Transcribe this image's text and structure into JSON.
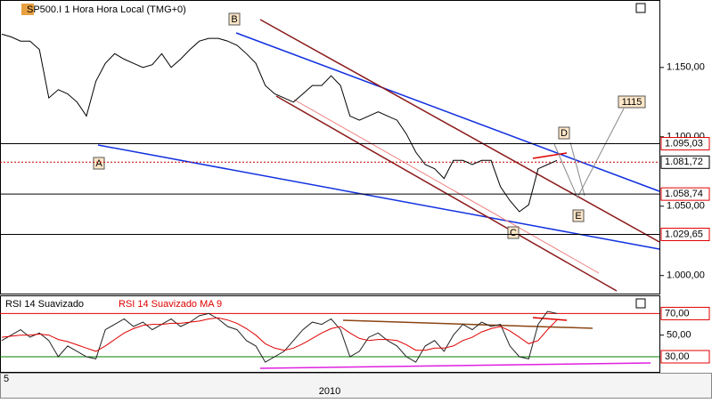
{
  "chart_data": [
    {
      "type": "line",
      "title": "SP500.I 1 Hora Hora Local (TMG+0)",
      "values": [
        1174,
        1172,
        1169,
        1169,
        1163,
        1128,
        1134,
        1131,
        1125,
        1115,
        1140,
        1153,
        1160,
        1156,
        1153,
        1150,
        1152,
        1160,
        1150,
        1156,
        1163,
        1169,
        1171,
        1171,
        1169,
        1166,
        1160,
        1153,
        1137,
        1131,
        1128,
        1125,
        1131,
        1137,
        1137,
        1144,
        1137,
        1115,
        1112,
        1115,
        1118,
        1115,
        1112,
        1102,
        1089,
        1080,
        1077,
        1070,
        1083,
        1083,
        1080,
        1083,
        1083,
        1064,
        1054,
        1046,
        1051,
        1077,
        1080,
        1083
      ],
      "color": "#000000",
      "ylim": [
        987,
        1198
      ],
      "yticks": [
        {
          "value": 1000,
          "label": "1.000,00"
        },
        {
          "value": 1050,
          "label": "1.050,00"
        },
        {
          "value": 1100,
          "label": "1.100,00"
        },
        {
          "value": 1150,
          "label": "1.150,00"
        }
      ],
      "levels": [
        {
          "value": 1095.03,
          "label": "1.095,03",
          "color": "#000000"
        },
        {
          "value": 1081.72,
          "label": "1.081,72",
          "color": "#c00000"
        },
        {
          "value": 1058.74,
          "label": "1.058,74",
          "color": "#000000"
        },
        {
          "value": 1029.65,
          "label": "1.029,65",
          "color": "#000000"
        }
      ],
      "annotations": [
        "A",
        "B",
        "C",
        "D",
        "E",
        "1115"
      ]
    },
    {
      "type": "line",
      "series": [
        {
          "name": "RSI 14 Suavizado",
          "color": "#222222",
          "values": [
            45,
            50,
            55,
            48,
            52,
            45,
            30,
            40,
            35,
            30,
            28,
            55,
            60,
            65,
            58,
            62,
            55,
            60,
            65,
            58,
            62,
            68,
            70,
            65,
            58,
            55,
            45,
            40,
            25,
            30,
            35,
            45,
            55,
            62,
            60,
            65,
            55,
            30,
            35,
            48,
            52,
            45,
            40,
            30,
            25,
            40,
            45,
            35,
            50,
            60,
            55,
            62,
            58,
            60,
            40,
            30,
            28,
            60,
            72,
            70
          ]
        },
        {
          "name": "RSI 14 Suavizado MA 9",
          "color": "#e00000",
          "values": [
            48,
            49,
            50,
            50,
            51,
            50,
            46,
            44,
            41,
            38,
            35,
            40,
            46,
            52,
            56,
            59,
            60,
            60,
            61,
            61,
            62,
            63,
            65,
            66,
            64,
            61,
            56,
            50,
            42,
            38,
            36,
            38,
            42,
            47,
            52,
            56,
            58,
            52,
            47,
            45,
            46,
            46,
            45,
            41,
            36,
            36,
            38,
            38,
            40,
            45,
            48,
            53,
            56,
            58,
            54,
            48,
            42,
            45,
            55,
            64
          ]
        }
      ],
      "ylim": [
        16,
        86
      ],
      "yticks": [
        {
          "value": 50,
          "label": "50,00"
        }
      ],
      "levels": [
        {
          "value": 70,
          "label": "70,00",
          "color": "#e00000"
        },
        {
          "value": 30,
          "label": "30,00",
          "color": "#008000"
        }
      ],
      "x_tick_labels": [
        "5",
        "2010"
      ]
    }
  ]
}
